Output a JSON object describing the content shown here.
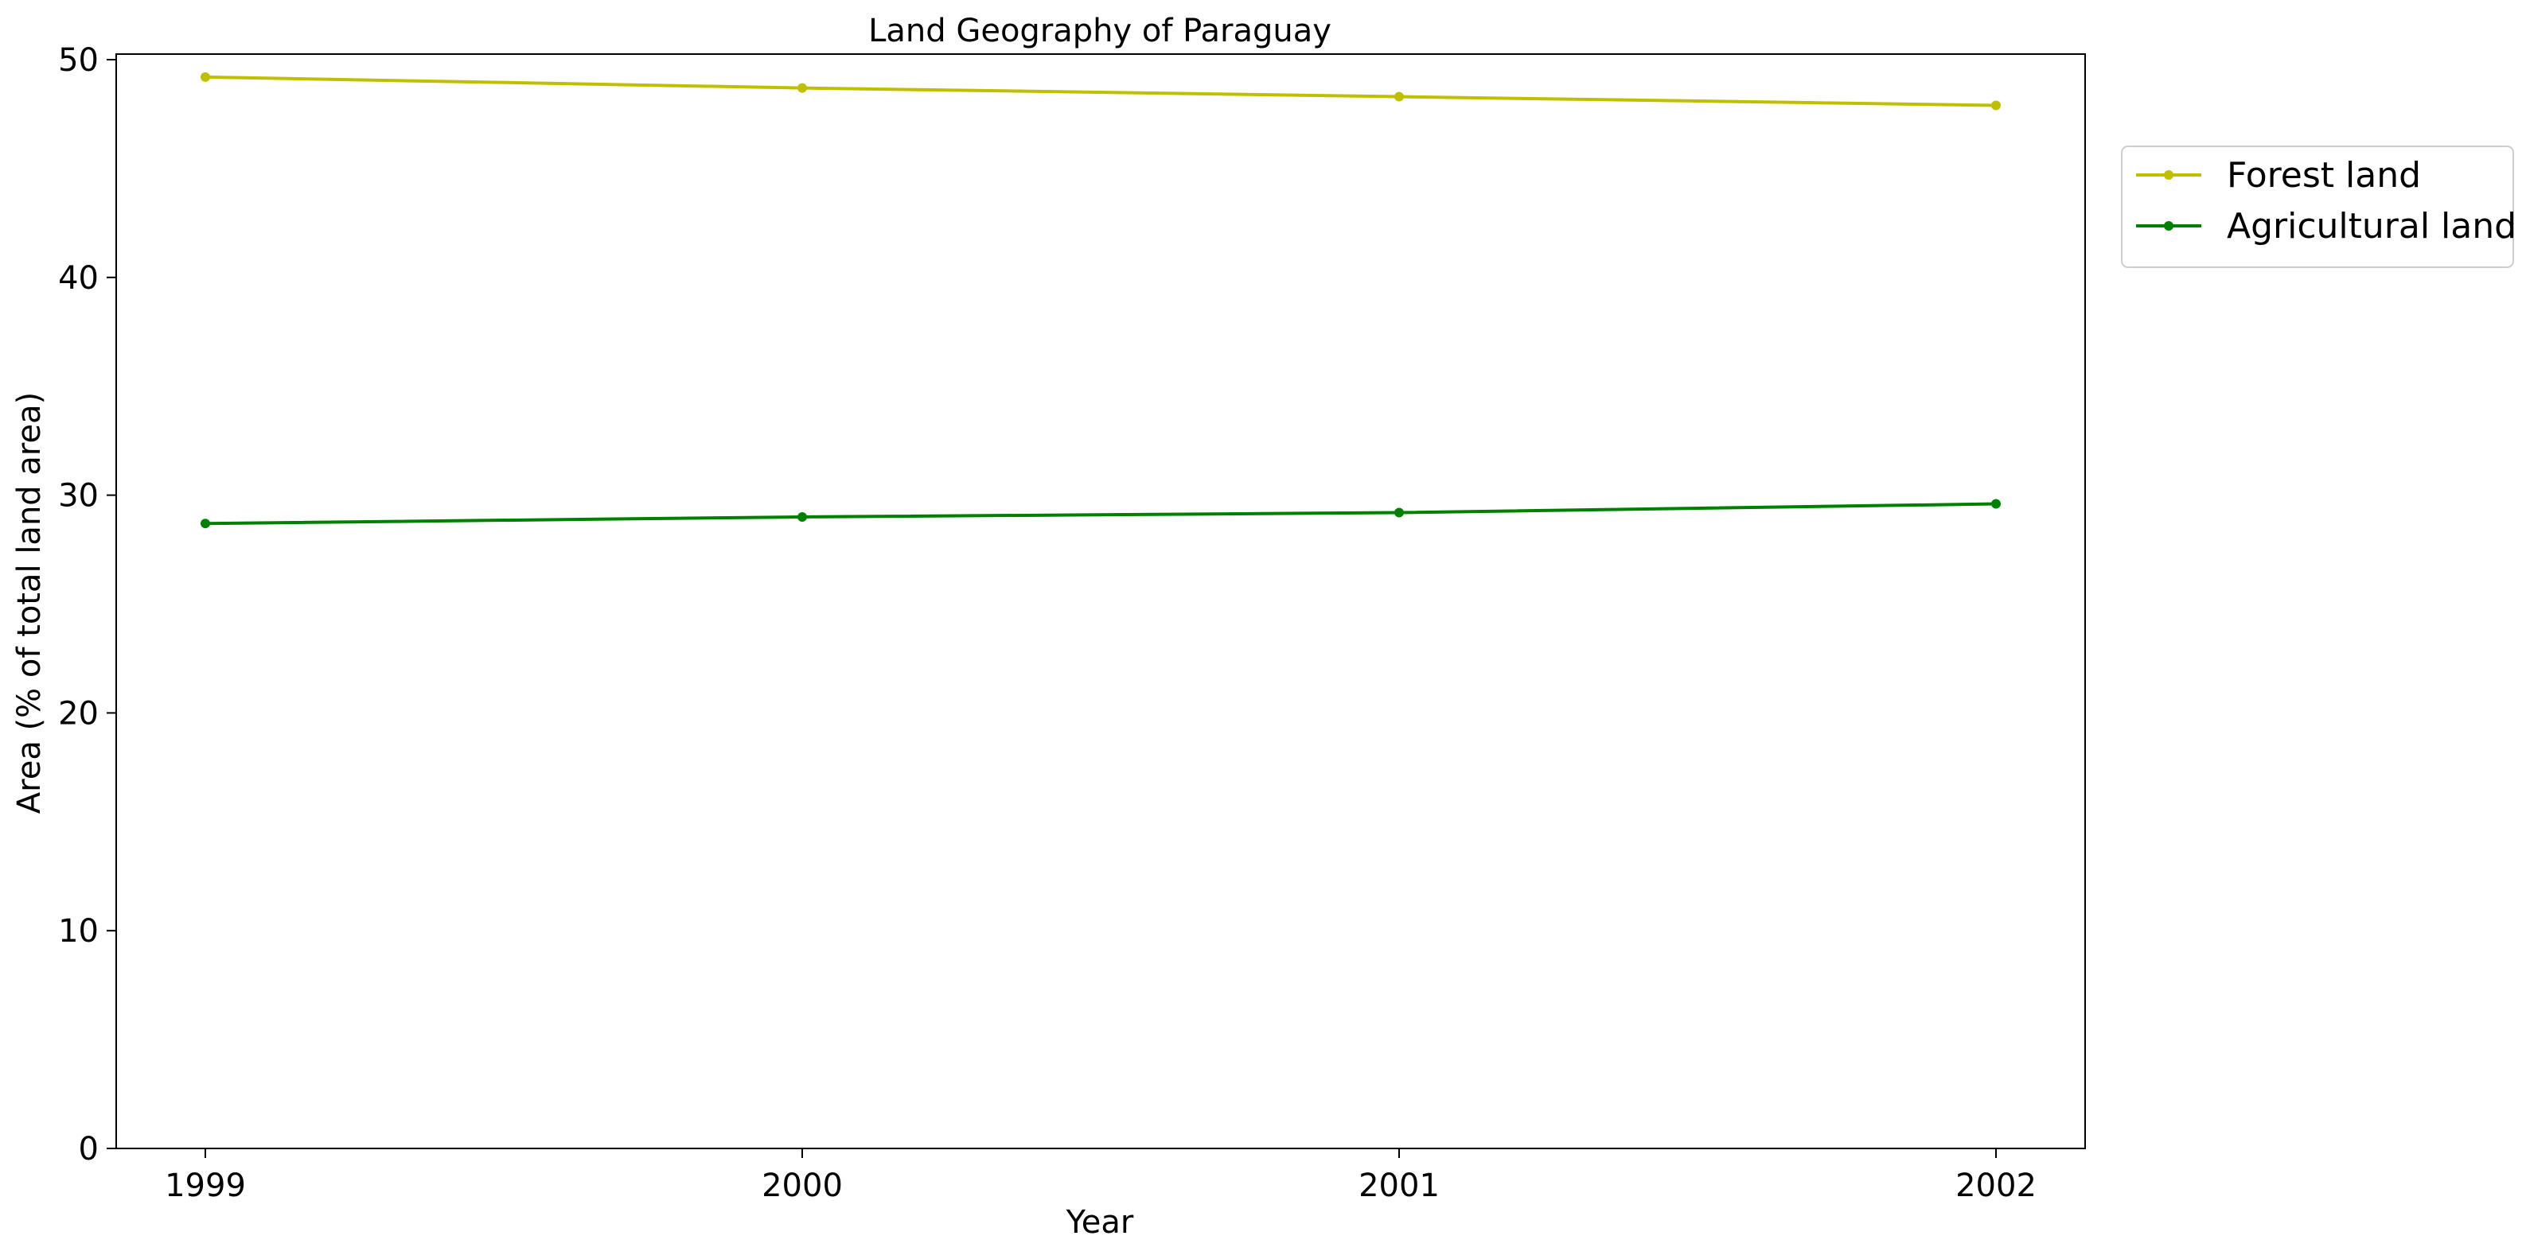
{
  "chart_data": {
    "type": "line",
    "title": "Land Geography of Paraguay",
    "xlabel": "Year",
    "ylabel": "Area (% of total land area)",
    "x": [
      "1999",
      "2000",
      "2001",
      "2002"
    ],
    "ylim": [
      0,
      50
    ],
    "yticks": [
      "0",
      "10",
      "20",
      "30",
      "40",
      "50"
    ],
    "grid": false,
    "legend_position": "outside right, top",
    "series": [
      {
        "name": "Forest land",
        "color": "#bfbf00",
        "values": [
          49.2,
          48.7,
          48.3,
          47.9
        ]
      },
      {
        "name": "Agricultural land",
        "color": "#008000",
        "values": [
          28.7,
          29.0,
          29.2,
          29.6
        ]
      }
    ]
  }
}
